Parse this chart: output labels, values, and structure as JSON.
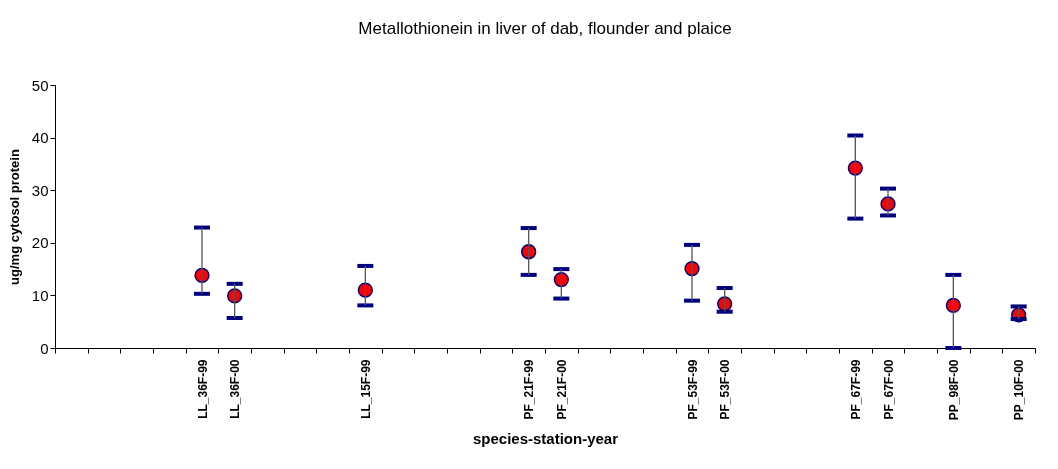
{
  "chart_data": {
    "type": "scatter",
    "title": "Metallothionein in liver of dab, flounder and plaice",
    "xlabel": "species-station-year",
    "ylabel": "ug/mg cytosol protein",
    "categories": [
      null,
      null,
      null,
      null,
      "LL_36F-99",
      "LL_36F-00",
      null,
      null,
      null,
      "LL_15F-99",
      null,
      null,
      null,
      null,
      "PF_21F-99",
      "PF_21F-00",
      null,
      null,
      null,
      "PF_53F-99",
      "PF_53F-00",
      null,
      null,
      null,
      "PF_67F-99",
      "PF_67F-00",
      null,
      "PP_98F-00",
      null,
      "PP_10F-00"
    ],
    "series": [
      {
        "color": "#ff0000",
        "marker": "circle",
        "values": [
          null,
          null,
          null,
          null,
          13.8,
          9.9,
          null,
          null,
          null,
          11.0,
          null,
          null,
          null,
          null,
          18.3,
          13.0,
          null,
          null,
          null,
          15.1,
          8.4,
          null,
          null,
          null,
          34.2,
          27.4,
          null,
          8.1,
          null,
          6.3
        ],
        "errors": [
          null,
          null,
          null,
          null,
          [
            10.3,
            22.9
          ],
          [
            5.7,
            12.2
          ],
          null,
          null,
          null,
          [
            8.1,
            15.6
          ],
          null,
          null,
          null,
          null,
          [
            13.9,
            22.8
          ],
          [
            9.4,
            15.0
          ],
          null,
          null,
          null,
          [
            9.0,
            19.6
          ],
          [
            6.9,
            11.4
          ],
          null,
          null,
          null,
          [
            24.6,
            40.4
          ],
          [
            25.2,
            30.3
          ],
          null,
          [
            0,
            13.9
          ],
          null,
          [
            5.5,
            7.9
          ]
        ]
      }
    ],
    "ylim": [
      0,
      50
    ],
    "yticks": [
      0,
      10,
      20,
      30,
      40,
      50
    ],
    "grid": false,
    "legend": false
  }
}
